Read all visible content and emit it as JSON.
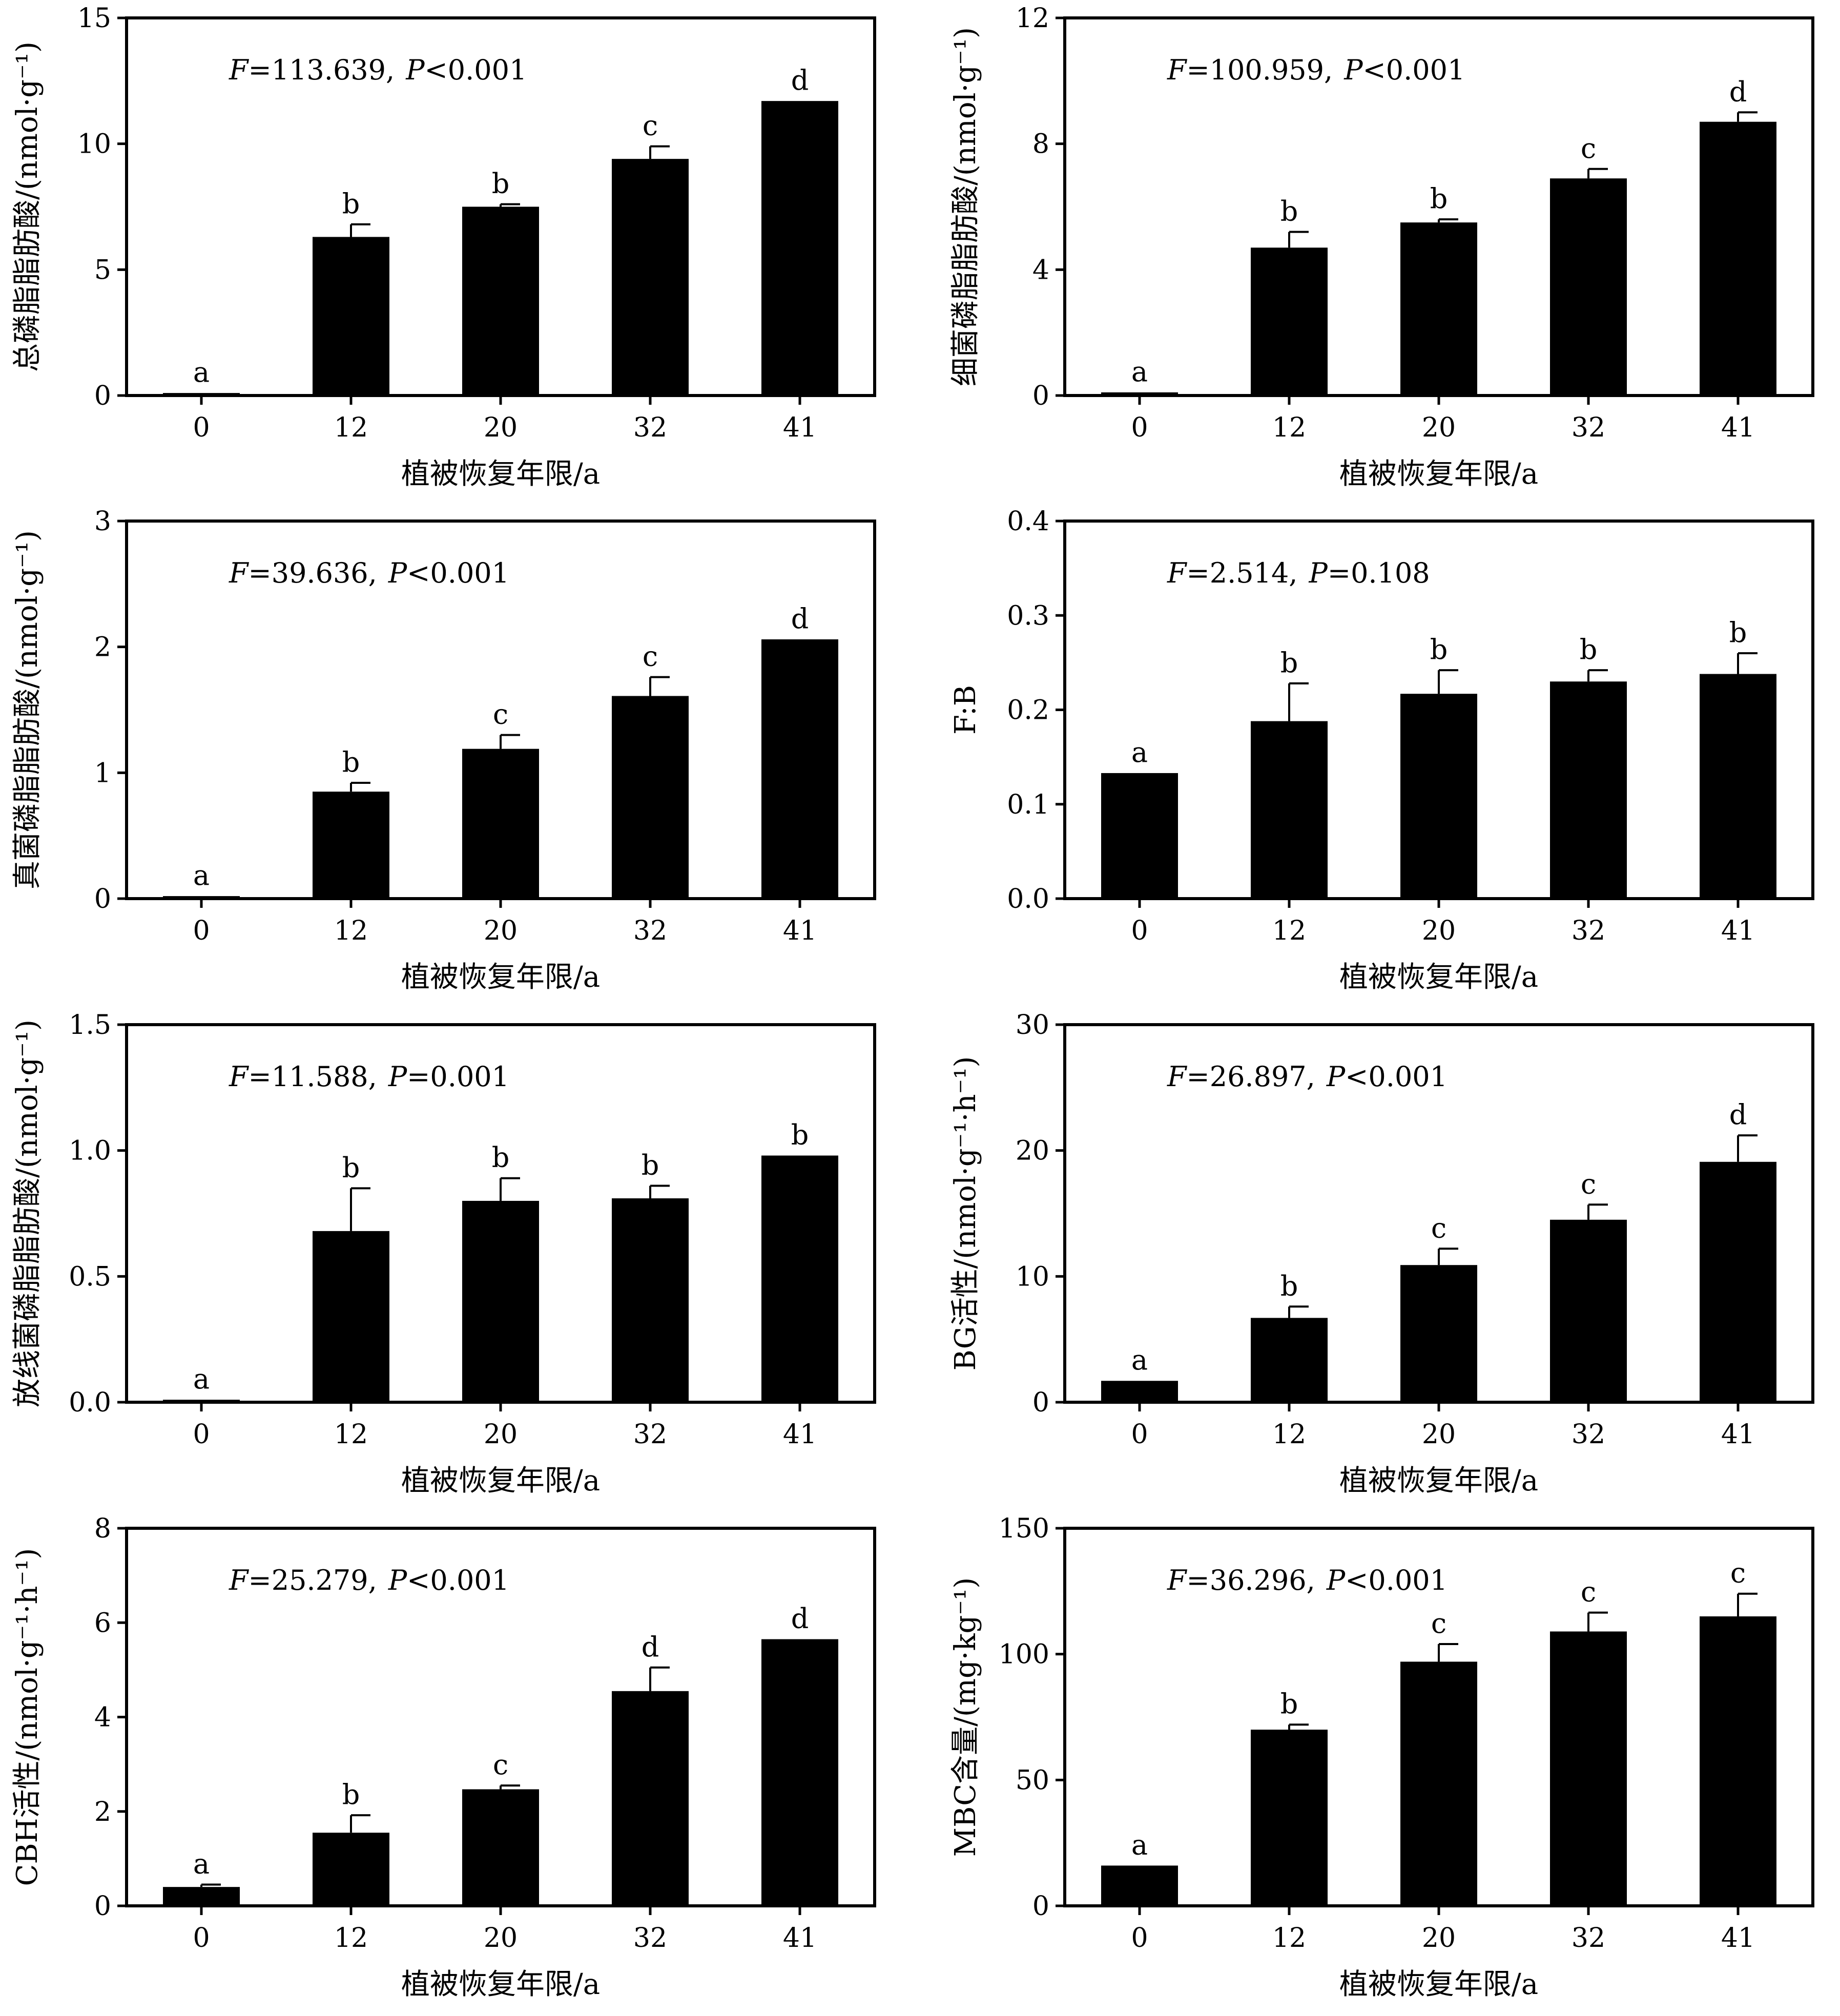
{
  "figure": {
    "x_axis_label": "植被恢复年限/a",
    "categories": [
      "0",
      "12",
      "20",
      "32",
      "41"
    ]
  },
  "chart_data": [
    {
      "type": "bar",
      "ylabel": "总磷脂脂肪酸/(nmol·g⁻¹)",
      "xlabel": "植被恢复年限/a",
      "stat": {
        "F_symbol": "F",
        "F_text": "=113.639,",
        "P_symbol": "P",
        "P_text": "<0.001"
      },
      "categories": [
        "0",
        "12",
        "20",
        "32",
        "41"
      ],
      "values": [
        0.1,
        6.3,
        7.5,
        9.4,
        11.7
      ],
      "errors": [
        0.0,
        0.5,
        0.1,
        0.5,
        0.0
      ],
      "letters": [
        "a",
        "b",
        "b",
        "c",
        "d"
      ],
      "ylim": [
        0,
        15
      ],
      "yticks": [
        "0",
        "5",
        "10",
        "15"
      ],
      "ytick_values": [
        0,
        5,
        10,
        15
      ]
    },
    {
      "type": "bar",
      "ylabel": "细菌磷脂脂肪酸/(nmol·g⁻¹)",
      "xlabel": "植被恢复年限/a",
      "stat": {
        "F_symbol": "F",
        "F_text": "=100.959,",
        "P_symbol": "P",
        "P_text": "<0.001"
      },
      "categories": [
        "0",
        "12",
        "20",
        "32",
        "41"
      ],
      "values": [
        0.1,
        4.7,
        5.5,
        6.9,
        8.7
      ],
      "errors": [
        0.0,
        0.5,
        0.1,
        0.3,
        0.3
      ],
      "letters": [
        "a",
        "b",
        "b",
        "c",
        "d"
      ],
      "ylim": [
        0,
        12
      ],
      "yticks": [
        "0",
        "4",
        "8",
        "12"
      ],
      "ytick_values": [
        0,
        4,
        8,
        12
      ]
    },
    {
      "type": "bar",
      "ylabel": "真菌磷脂脂肪酸/(nmol·g⁻¹)",
      "xlabel": "植被恢复年限/a",
      "stat": {
        "F_symbol": "F",
        "F_text": "=39.636,",
        "P_symbol": "P",
        "P_text": "<0.001"
      },
      "categories": [
        "0",
        "12",
        "20",
        "32",
        "41"
      ],
      "values": [
        0.02,
        0.85,
        1.19,
        1.61,
        2.06
      ],
      "errors": [
        0.0,
        0.07,
        0.11,
        0.15,
        0.0
      ],
      "letters": [
        "a",
        "b",
        "c",
        "c",
        "d"
      ],
      "ylim": [
        0,
        3
      ],
      "yticks": [
        "0",
        "1",
        "2",
        "3"
      ],
      "ytick_values": [
        0,
        1,
        2,
        3
      ]
    },
    {
      "type": "bar",
      "ylabel": "F:B",
      "xlabel": "植被恢复年限/a",
      "stat": {
        "F_symbol": "F",
        "F_text": "=2.514,",
        "P_symbol": "P",
        "P_text": "=0.108"
      },
      "categories": [
        "0",
        "12",
        "20",
        "32",
        "41"
      ],
      "values": [
        0.133,
        0.188,
        0.217,
        0.23,
        0.238
      ],
      "errors": [
        0.0,
        0.04,
        0.025,
        0.012,
        0.022
      ],
      "letters": [
        "a",
        "b",
        "b",
        "b",
        "b"
      ],
      "ylim": [
        0,
        0.4
      ],
      "yticks": [
        "0.0",
        "0.1",
        "0.2",
        "0.3",
        "0.4"
      ],
      "ytick_values": [
        0,
        0.1,
        0.2,
        0.3,
        0.4
      ]
    },
    {
      "type": "bar",
      "ylabel": "放线菌磷脂脂肪酸/(nmol·g⁻¹)",
      "xlabel": "植被恢复年限/a",
      "stat": {
        "F_symbol": "F",
        "F_text": "=11.588,",
        "P_symbol": "P",
        "P_text": "=0.001"
      },
      "categories": [
        "0",
        "12",
        "20",
        "32",
        "41"
      ],
      "values": [
        0.01,
        0.68,
        0.8,
        0.81,
        0.98
      ],
      "errors": [
        0.0,
        0.17,
        0.09,
        0.05,
        0.0
      ],
      "letters": [
        "a",
        "b",
        "b",
        "b",
        "b"
      ],
      "ylim": [
        0,
        1.5
      ],
      "yticks": [
        "0.0",
        "0.5",
        "1.0",
        "1.5"
      ],
      "ytick_values": [
        0,
        0.5,
        1.0,
        1.5
      ]
    },
    {
      "type": "bar",
      "ylabel": "BG活性/(nmol·g⁻¹·h⁻¹)",
      "xlabel": "植被恢复年限/a",
      "stat": {
        "F_symbol": "F",
        "F_text": "=26.897,",
        "P_symbol": "P",
        "P_text": "<0.001"
      },
      "categories": [
        "0",
        "12",
        "20",
        "32",
        "41"
      ],
      "values": [
        1.7,
        6.7,
        10.9,
        14.5,
        19.1
      ],
      "errors": [
        0.0,
        0.9,
        1.3,
        1.2,
        2.1
      ],
      "letters": [
        "a",
        "b",
        "c",
        "c",
        "d"
      ],
      "ylim": [
        0,
        30
      ],
      "yticks": [
        "0",
        "10",
        "20",
        "30"
      ],
      "ytick_values": [
        0,
        10,
        20,
        30
      ]
    },
    {
      "type": "bar",
      "ylabel": "CBH活性/(nmol·g⁻¹·h⁻¹)",
      "xlabel": "植被恢复年限/a",
      "stat": {
        "F_symbol": "F",
        "F_text": "=25.279,",
        "P_symbol": "P",
        "P_text": "<0.001"
      },
      "categories": [
        "0",
        "12",
        "20",
        "32",
        "41"
      ],
      "values": [
        0.4,
        1.55,
        2.47,
        4.55,
        5.65
      ],
      "errors": [
        0.05,
        0.37,
        0.08,
        0.5,
        0.0
      ],
      "letters": [
        "a",
        "b",
        "c",
        "d",
        "d"
      ],
      "ylim": [
        0,
        8
      ],
      "yticks": [
        "0",
        "2",
        "4",
        "6",
        "8"
      ],
      "ytick_values": [
        0,
        2,
        4,
        6,
        8
      ]
    },
    {
      "type": "bar",
      "ylabel": "MBC含量/(mg·kg⁻¹)",
      "xlabel": "植被恢复年限/a",
      "stat": {
        "F_symbol": "F",
        "F_text": "=36.296,",
        "P_symbol": "P",
        "P_text": "<0.001"
      },
      "categories": [
        "0",
        "12",
        "20",
        "32",
        "41"
      ],
      "values": [
        16,
        70,
        97,
        109,
        115
      ],
      "errors": [
        0.0,
        2.0,
        7.0,
        7.5,
        9.0
      ],
      "letters": [
        "a",
        "b",
        "c",
        "c",
        "c"
      ],
      "ylim": [
        0,
        150
      ],
      "yticks": [
        "0",
        "50",
        "100",
        "150"
      ],
      "ytick_values": [
        0,
        50,
        100,
        150
      ]
    }
  ]
}
